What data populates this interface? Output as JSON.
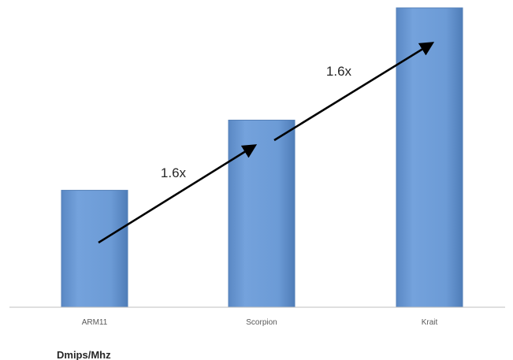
{
  "chart_data": {
    "type": "bar",
    "categories": [
      "ARM11",
      "Scorpion",
      "Krait"
    ],
    "values": [
      1.25,
      2.0,
      3.2
    ],
    "ylabel": "Dmips/Mhz",
    "ylim": [
      0,
      3.2
    ],
    "grid": false,
    "legend": "none",
    "bar_color": "#6c9bd6",
    "annotations": [
      {
        "text": "1.6x",
        "from": "ARM11",
        "to": "Scorpion"
      },
      {
        "text": "1.6x",
        "from": "Scorpion",
        "to": "Krait"
      }
    ]
  }
}
